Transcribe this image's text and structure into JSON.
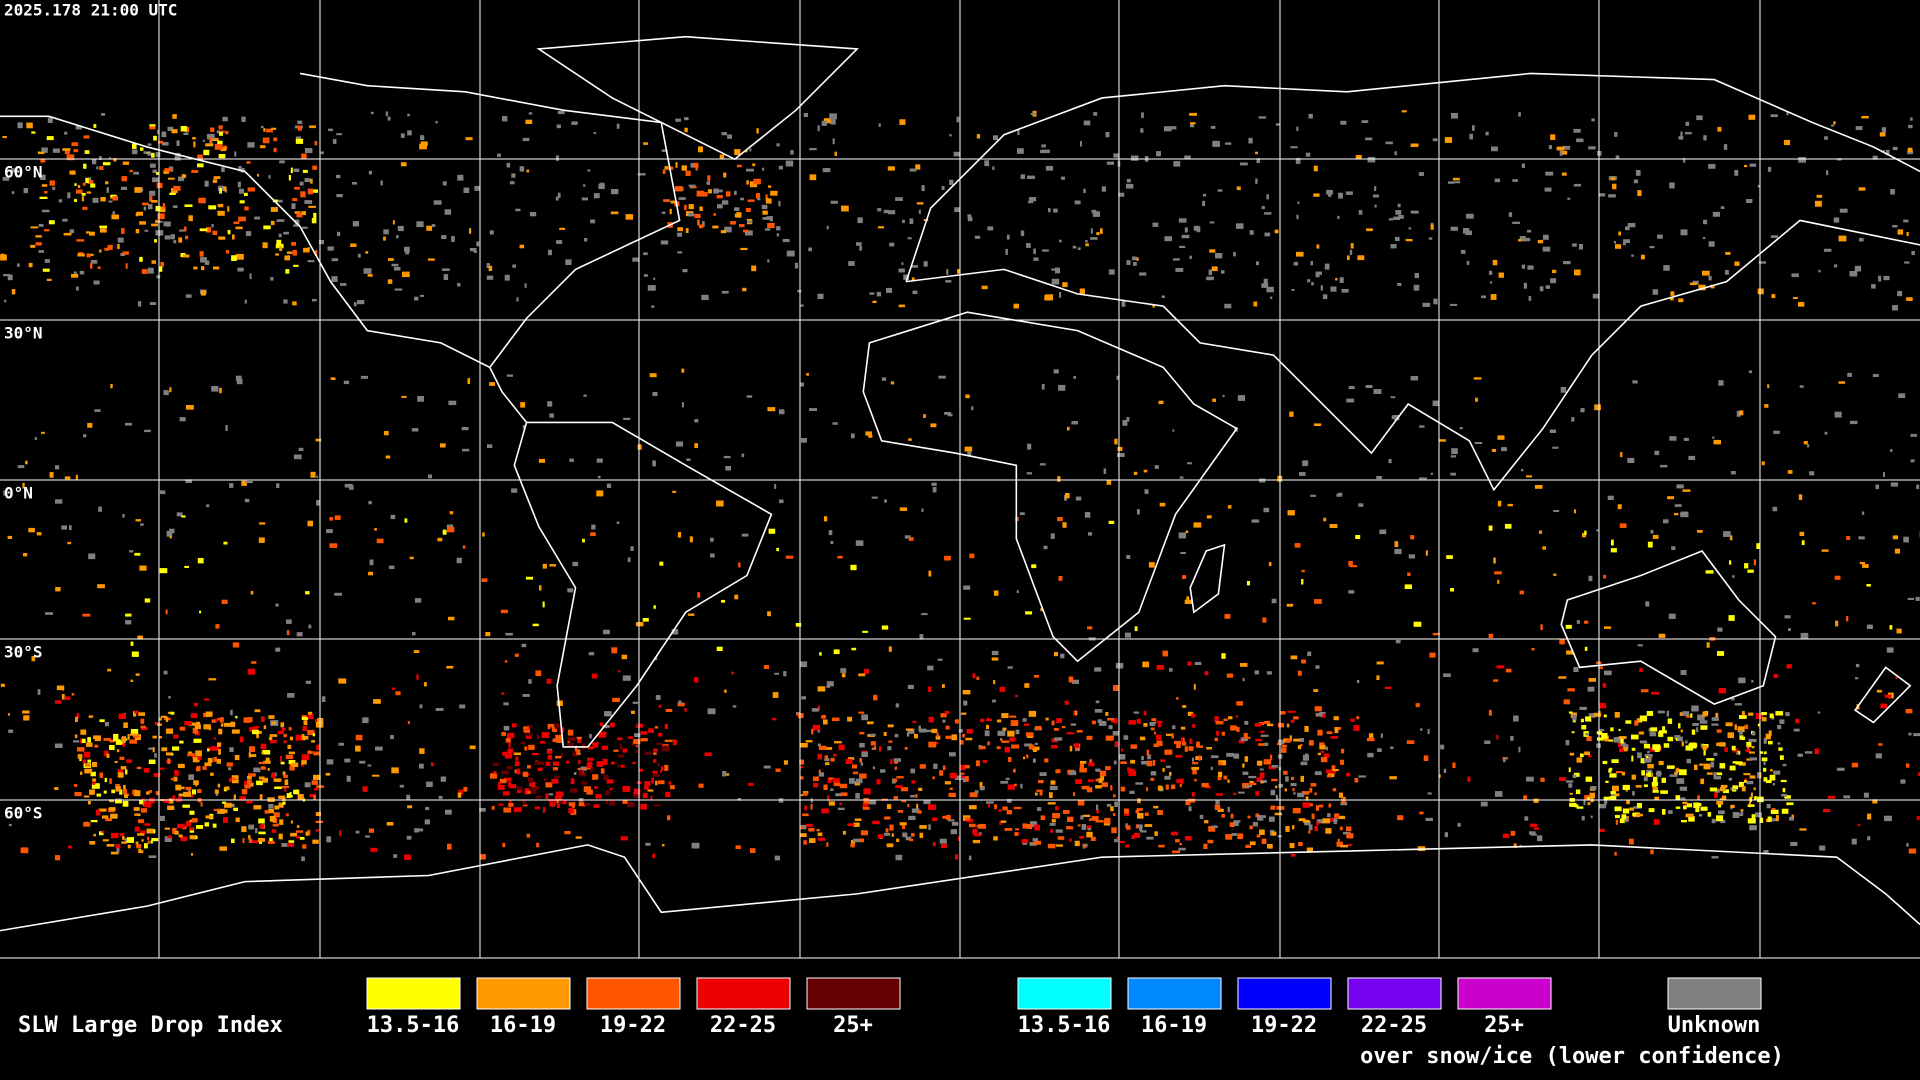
{
  "timestamp": "2025.178 21:00 UTC",
  "lat_labels": [
    "60°N",
    "30°N",
    "0°N",
    "30°S",
    "60°S"
  ],
  "legend": {
    "title": "SLW Large Drop Index",
    "items": [
      {
        "label": "13.5-16",
        "color": "#ffff00"
      },
      {
        "label": "16-19",
        "color": "#ff9900"
      },
      {
        "label": "19-22",
        "color": "#ff5500"
      },
      {
        "label": "22-25",
        "color": "#ee0000"
      },
      {
        "label": "25+",
        "color": "#660000"
      }
    ],
    "snow_items": [
      {
        "label": "13.5-16",
        "color": "#00ffff"
      },
      {
        "label": "16-19",
        "color": "#0088ff"
      },
      {
        "label": "19-22",
        "color": "#0000ff"
      },
      {
        "label": "22-25",
        "color": "#7700ee"
      },
      {
        "label": "25+",
        "color": "#cc00cc"
      }
    ],
    "snow_note": "over snow/ice (lower confidence)",
    "unknown": {
      "label": "Unknown",
      "color": "#808080"
    }
  }
}
